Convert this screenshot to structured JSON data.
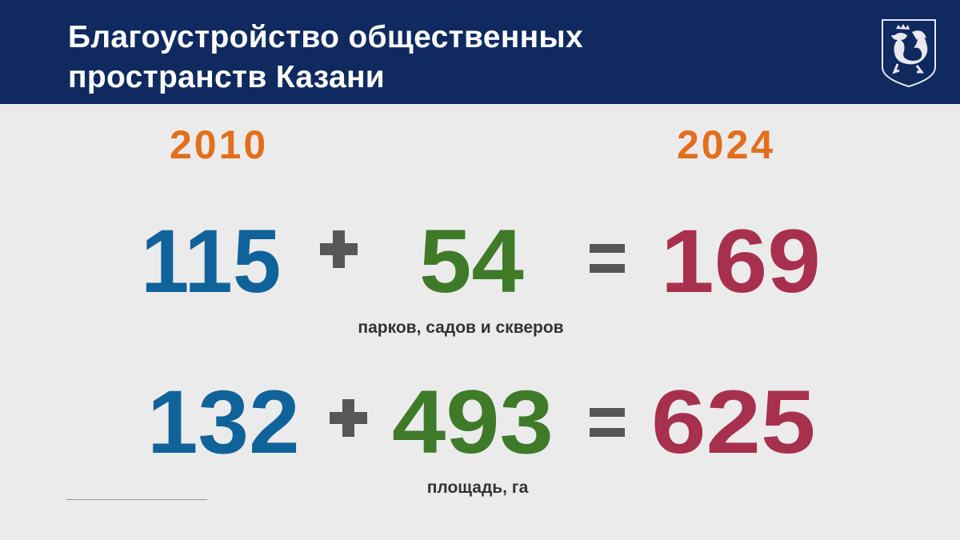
{
  "header": {
    "title_lines": [
      "Благоустройство общественных",
      "пространств Казани"
    ],
    "emblem_icon": "kazan-coat-of-arms-icon"
  },
  "years": {
    "start": "2010",
    "end": "2024"
  },
  "rows": [
    {
      "base": "115",
      "added": "54",
      "total": "169",
      "caption": "парков, садов и скверов"
    },
    {
      "base": "132",
      "added": "493",
      "total": "625",
      "caption": "площадь, га"
    }
  ],
  "colors": {
    "header_bg": "#102a60",
    "year": "#e26f1c",
    "base": "#10639a",
    "added": "#3f7a29",
    "total": "#a8304f",
    "operator": "#575757",
    "background": "#ebebeb"
  }
}
